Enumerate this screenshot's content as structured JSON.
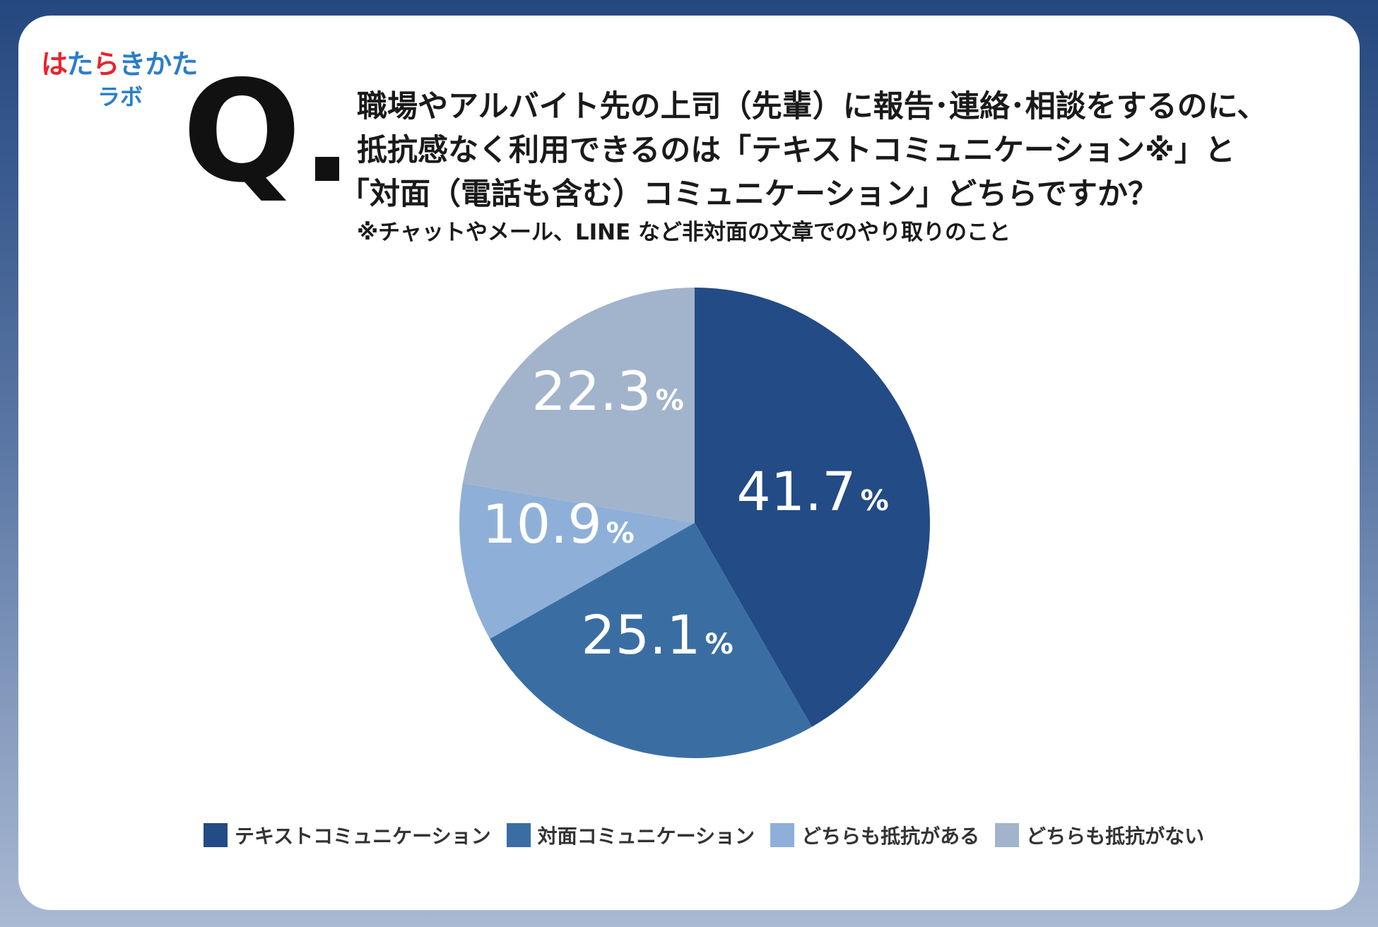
{
  "logo": {
    "line1": [
      "は",
      "た",
      "ら",
      "き",
      "か",
      "た"
    ],
    "line1_colors": [
      "#e8242a",
      "#2a7ec8",
      "#e8242a",
      "#2a7ec8",
      "#2a7ec8",
      "#2a7ec8"
    ],
    "line2": "ラボ",
    "line2_color": "#2a7ec8"
  },
  "question": {
    "mark": "Q",
    "line1": "職場やアルバイト先の上司（先輩）に報告･連絡･相談をするのに、",
    "line2": "抵抗感なく利用できるのは「テキストコミュニケーション※」と",
    "line3": "「対面（電話も含む）コミュニケーション」どちらですか？",
    "note": "※チャットやメール、LINE など非対面の文章でのやり取りのこと"
  },
  "chart_data": {
    "type": "pie",
    "percent_suffix": "%",
    "slices": [
      {
        "label": "テキストコミュニケーション",
        "value": 41.7,
        "value_text": "41.7",
        "color": "#234b85"
      },
      {
        "label": "対面コミュニケーション",
        "value": 25.1,
        "value_text": "25.1",
        "color": "#3a6ea3"
      },
      {
        "label": "どちらも抵抗がある",
        "value": 10.9,
        "value_text": "10.9",
        "color": "#8eb0d8"
      },
      {
        "label": "どちらも抵抗がない",
        "value": 22.3,
        "value_text": "22.3",
        "color": "#a2b4cc"
      }
    ],
    "legend_position": "bottom"
  }
}
